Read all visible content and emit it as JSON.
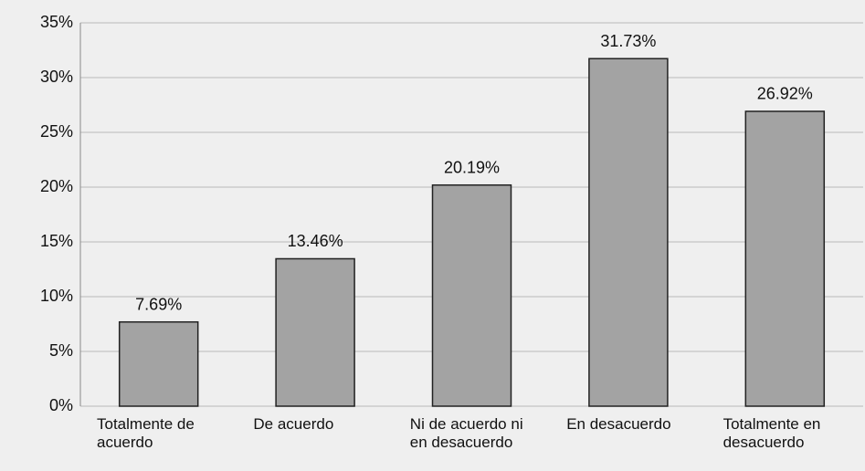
{
  "chart_data": {
    "type": "bar",
    "categories": [
      "Totalmente de acuerdo",
      "De acuerdo",
      "Ni de acuerdo ni en desacuerdo",
      "En desacuerdo",
      "Totalmente en desacuerdo"
    ],
    "values": [
      7.69,
      13.46,
      20.19,
      31.73,
      26.92
    ],
    "value_labels": [
      "7.69%",
      "13.46%",
      "20.19%",
      "31.73%",
      "26.92%"
    ],
    "color": "#a3a3a3",
    "ylim": [
      0,
      35
    ],
    "yticks": [
      {
        "value": 0,
        "label": "0%"
      },
      {
        "value": 5,
        "label": "5%"
      },
      {
        "value": 10,
        "label": "10%"
      },
      {
        "value": 15,
        "label": "15%"
      },
      {
        "value": 20,
        "label": "20%"
      },
      {
        "value": 25,
        "label": "25%"
      },
      {
        "value": 30,
        "label": "30%"
      },
      {
        "value": 35,
        "label": "35%"
      }
    ],
    "grid": true
  }
}
